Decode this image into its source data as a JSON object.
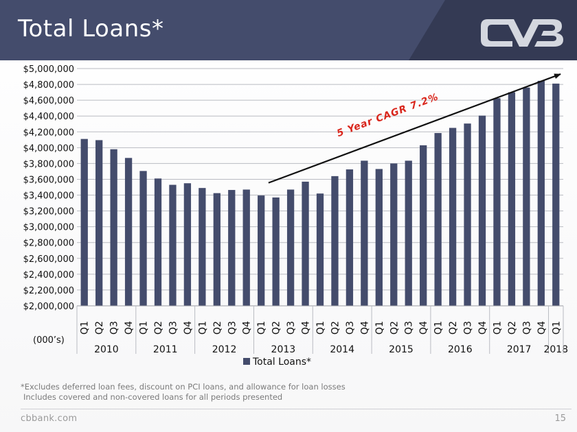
{
  "header": {
    "title": "Total Loans*",
    "logo_text": "CVB",
    "colors": {
      "band": "#444c6c",
      "band_dark": "#343a54",
      "logo": "#d4d7df"
    }
  },
  "chart_data": {
    "type": "bar",
    "series": [
      {
        "name": "Total Loans*",
        "color": "#444c6c",
        "values": [
          4110000,
          4095000,
          3980000,
          3870000,
          3705000,
          3610000,
          3530000,
          3550000,
          3490000,
          3425000,
          3465000,
          3470000,
          3395000,
          3370000,
          3470000,
          3570000,
          3420000,
          3640000,
          3725000,
          3835000,
          3730000,
          3800000,
          3835000,
          4030000,
          4185000,
          4250000,
          4305000,
          4405000,
          4625000,
          4700000,
          4760000,
          4845000,
          4810000
        ]
      }
    ],
    "categories": [
      "Q1",
      "Q2",
      "Q3",
      "Q4",
      "Q1",
      "Q2",
      "Q3",
      "Q4",
      "Q1",
      "Q2",
      "Q3",
      "Q4",
      "Q1",
      "Q2",
      "Q3",
      "Q4",
      "Q1",
      "Q2",
      "Q3",
      "Q4",
      "Q1",
      "Q2",
      "Q3",
      "Q4",
      "Q1",
      "Q2",
      "Q3",
      "Q4",
      "Q1",
      "Q2",
      "Q3",
      "Q4",
      "Q1"
    ],
    "years": [
      {
        "label": "2010",
        "count": 4
      },
      {
        "label": "2011",
        "count": 4
      },
      {
        "label": "2012",
        "count": 4
      },
      {
        "label": "2013",
        "count": 4
      },
      {
        "label": "2014",
        "count": 4
      },
      {
        "label": "2015",
        "count": 4
      },
      {
        "label": "2016",
        "count": 4
      },
      {
        "label": "2017",
        "count": 4
      },
      {
        "label": "2018",
        "count": 1
      }
    ],
    "ylim": [
      2000000,
      5000000
    ],
    "ystep": 200000,
    "ytick_prefix": "$",
    "ylabel": "(000’s)",
    "grid": true,
    "legend": "bottom",
    "annotation": {
      "text": "5 Year CAGR 7.2%",
      "color": "#d9261c",
      "arrow_from": {
        "x_index": 13,
        "y": 3555000
      },
      "arrow_to": {
        "x_index": 33,
        "y": 4930000
      }
    }
  },
  "footnote": {
    "line1": "*Excludes deferred loan fees, discount on PCI loans, and allowance for loan losses",
    "line2": "Includes covered and non-covered loans for all periods presented"
  },
  "footer": {
    "site": "cbbank.com",
    "page": "15"
  }
}
